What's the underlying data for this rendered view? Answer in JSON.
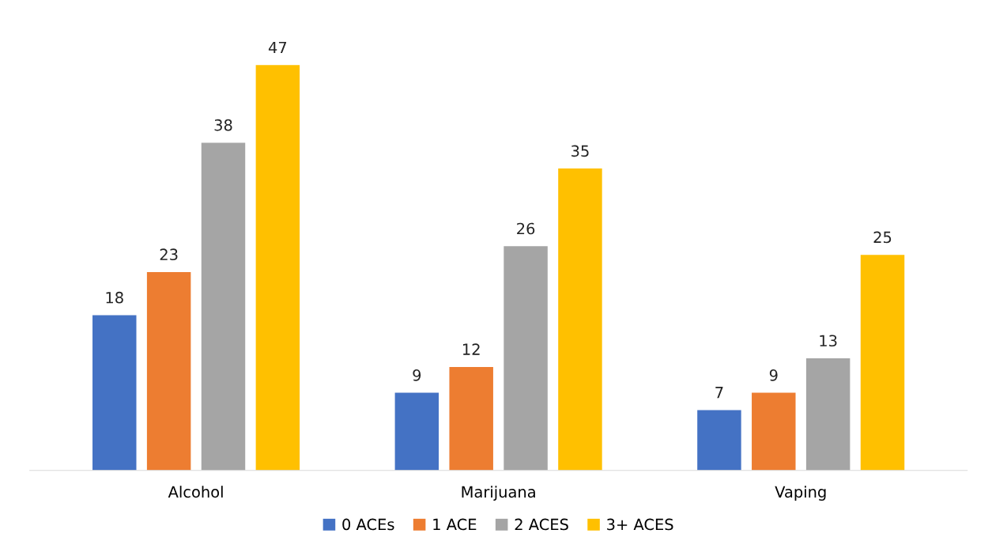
{
  "chart_data": {
    "type": "bar",
    "categories": [
      "Alcohol",
      "Marijuana",
      "Vaping"
    ],
    "series": [
      {
        "name": "0 ACEs",
        "color": "#4472c4",
        "values": [
          18,
          9,
          7
        ]
      },
      {
        "name": "1 ACE",
        "color": "#ed7d31",
        "values": [
          23,
          12,
          9
        ]
      },
      {
        "name": "2 ACES",
        "color": "#a5a5a5",
        "values": [
          38,
          26,
          13
        ]
      },
      {
        "name": "3+ ACES",
        "color": "#ffc000",
        "values": [
          47,
          35,
          25
        ]
      }
    ],
    "data_labels": true,
    "grid": false,
    "legend": "bottom",
    "tick_labels": "x"
  }
}
